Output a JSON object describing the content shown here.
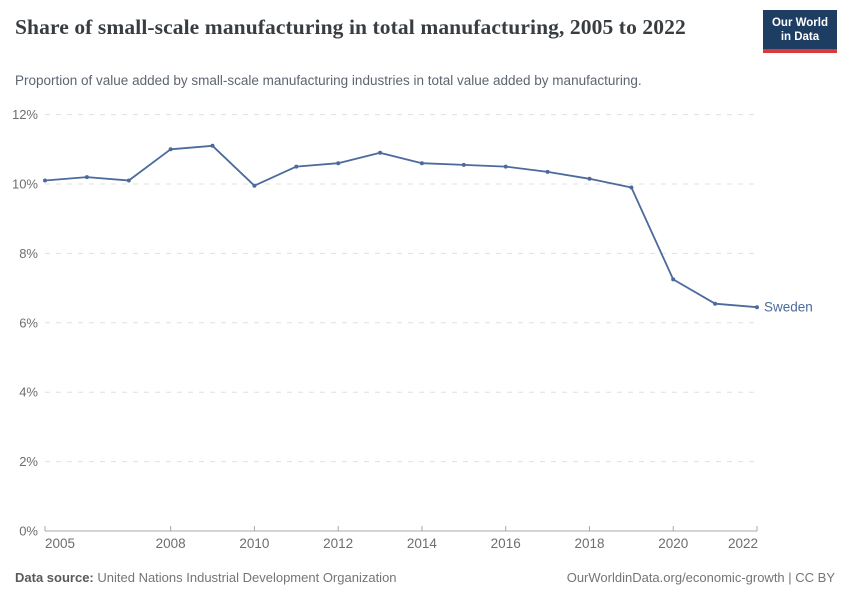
{
  "header": {
    "title": "Share of small-scale manufacturing in total manufacturing, 2005 to 2022",
    "subtitle": "Proportion of value added by small-scale manufacturing industries in total value added by manufacturing.",
    "logo": {
      "line1": "Our World",
      "line2": "in Data",
      "bg_color": "#1d3d63",
      "accent_color": "#d93a3c"
    }
  },
  "chart_data": {
    "type": "line",
    "title": "Share of small-scale manufacturing in total manufacturing, 2005 to 2022",
    "xlabel": "",
    "ylabel": "",
    "xlim": [
      2005,
      2022
    ],
    "ylim": [
      0,
      12
    ],
    "grid": "horizontal-dashed",
    "legend_position": "end-of-line",
    "x": [
      2005,
      2006,
      2007,
      2008,
      2009,
      2010,
      2011,
      2012,
      2013,
      2014,
      2015,
      2016,
      2017,
      2018,
      2019,
      2020,
      2021,
      2022
    ],
    "series": [
      {
        "name": "Sweden",
        "color": "#4c6a9c",
        "values": [
          10.1,
          10.2,
          10.1,
          11.0,
          11.1,
          9.95,
          10.5,
          10.6,
          10.9,
          10.6,
          10.55,
          10.5,
          10.35,
          10.15,
          9.9,
          7.25,
          6.55,
          6.45
        ]
      }
    ],
    "x_tick_values": [
      2005,
      2008,
      2010,
      2012,
      2014,
      2016,
      2018,
      2020,
      2022
    ],
    "x_tick_labels": [
      "2005",
      "2008",
      "2010",
      "2012",
      "2014",
      "2016",
      "2018",
      "2020",
      "2022"
    ],
    "y_tick_values": [
      0,
      2,
      4,
      6,
      8,
      10,
      12
    ],
    "y_tick_labels": [
      "0%",
      "2%",
      "4%",
      "6%",
      "8%",
      "10%",
      "12%"
    ],
    "colors": {
      "gridline": "#e0e0e0",
      "axis": "#a8a8a8",
      "tick_text": "#6e6e6e"
    }
  },
  "footer": {
    "source_label": "Data source:",
    "source_text": "United Nations Industrial Development Organization",
    "license_text": "OurWorldinData.org/economic-growth | CC BY"
  }
}
